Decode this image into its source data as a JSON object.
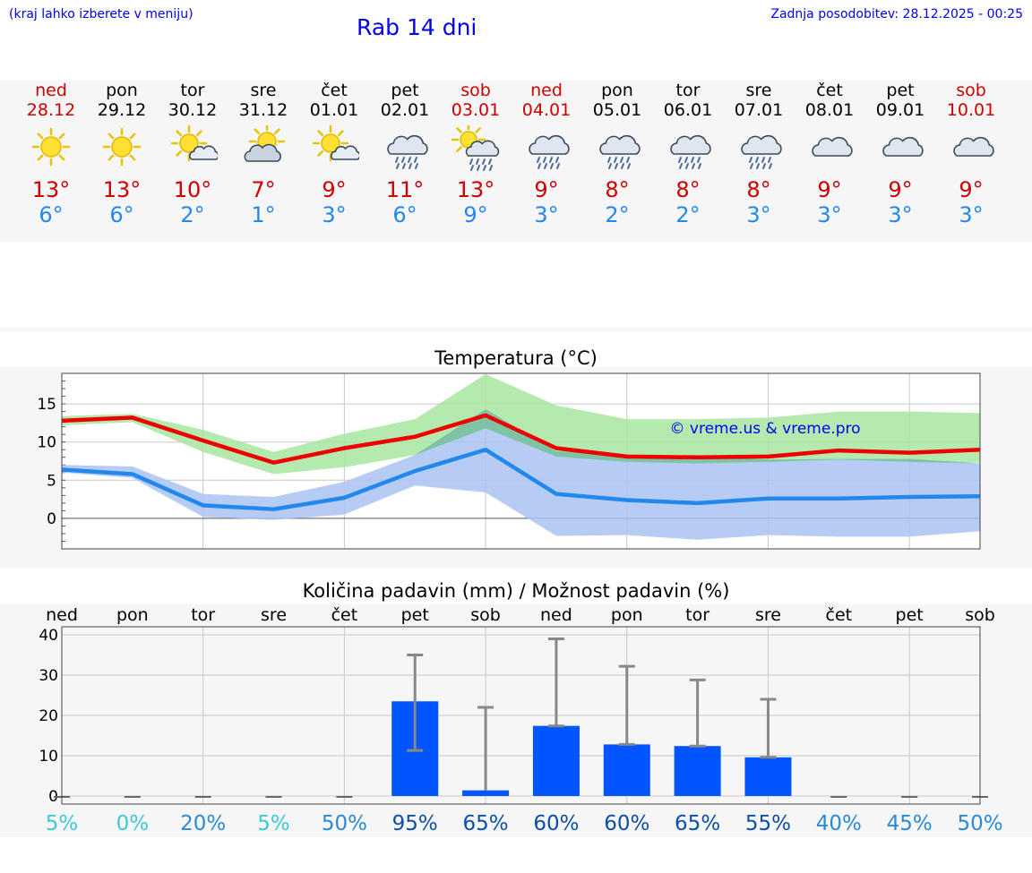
{
  "header": {
    "note": "(kraj lahko izberete v meniju)",
    "title": "Rab 14 dni",
    "updated": "Zadnja posodobitev: 28.12.2025 - 00:25"
  },
  "days": [
    {
      "name": "ned",
      "date": "28.12",
      "icon": "sun-icon",
      "max": "13°",
      "min": "6°",
      "weekend": true
    },
    {
      "name": "pon",
      "date": "29.12",
      "icon": "sun-icon",
      "max": "13°",
      "min": "6°",
      "weekend": false
    },
    {
      "name": "tor",
      "date": "30.12",
      "icon": "sun-small-cloud-icon",
      "max": "10°",
      "min": "2°",
      "weekend": false
    },
    {
      "name": "sre",
      "date": "31.12",
      "icon": "sun-behind-cloud-icon",
      "max": "7°",
      "min": "1°",
      "weekend": false
    },
    {
      "name": "čet",
      "date": "01.01",
      "icon": "sun-small-cloud-icon",
      "max": "9°",
      "min": "3°",
      "weekend": false
    },
    {
      "name": "pet",
      "date": "02.01",
      "icon": "rain-cloud-icon",
      "max": "11°",
      "min": "6°",
      "weekend": false
    },
    {
      "name": "sob",
      "date": "03.01",
      "icon": "sun-rain-icon",
      "max": "13°",
      "min": "9°",
      "weekend": true
    },
    {
      "name": "ned",
      "date": "04.01",
      "icon": "rain-cloud-icon",
      "max": "9°",
      "min": "3°",
      "weekend": true
    },
    {
      "name": "pon",
      "date": "05.01",
      "icon": "rain-cloud-icon",
      "max": "8°",
      "min": "2°",
      "weekend": false
    },
    {
      "name": "tor",
      "date": "06.01",
      "icon": "rain-cloud-icon",
      "max": "8°",
      "min": "2°",
      "weekend": false
    },
    {
      "name": "sre",
      "date": "07.01",
      "icon": "rain-cloud-icon",
      "max": "8°",
      "min": "3°",
      "weekend": false
    },
    {
      "name": "čet",
      "date": "08.01",
      "icon": "cloud-icon",
      "max": "9°",
      "min": "3°",
      "weekend": false
    },
    {
      "name": "pet",
      "date": "09.01",
      "icon": "cloud-icon",
      "max": "9°",
      "min": "3°",
      "weekend": false
    },
    {
      "name": "sob",
      "date": "10.01",
      "icon": "cloud-icon",
      "max": "9°",
      "min": "3°",
      "weekend": true
    }
  ],
  "colors": {
    "weekend": "#cc0000",
    "weekday": "#000000",
    "max_line": "#ee0000",
    "min_line": "#2288ee",
    "max_band": "#a8e6a0",
    "min_band": "#a9c3f2",
    "bar": "#0055ff",
    "error_bar": "#888888"
  },
  "chart_data": [
    {
      "type": "line",
      "title": "Temperatura (°C)",
      "watermark": "© vreme.us & vreme.pro",
      "ylim": [
        -4,
        19
      ],
      "yticks": [
        0,
        5,
        10,
        15
      ],
      "grid": true,
      "x": [
        0,
        1,
        2,
        3,
        4,
        5,
        6,
        7,
        8,
        9,
        10,
        11,
        12,
        13
      ],
      "series": [
        {
          "name": "max",
          "values": [
            12.8,
            13.2,
            10.2,
            7.3,
            9.2,
            10.7,
            13.5,
            9.2,
            8.1,
            8.0,
            8.1,
            8.9,
            8.6,
            9.0
          ],
          "band_low": [
            12.2,
            12.6,
            8.7,
            5.8,
            6.7,
            8.3,
            11.8,
            8.1,
            7.4,
            7.2,
            7.4,
            7.7,
            7.4,
            7.3
          ],
          "band_high": [
            13.4,
            13.7,
            11.6,
            8.7,
            11.1,
            13.0,
            18.9,
            14.8,
            13.0,
            13.0,
            13.2,
            14.0,
            14.0,
            13.8
          ]
        },
        {
          "name": "min",
          "values": [
            6.4,
            5.8,
            1.7,
            1.2,
            2.7,
            6.2,
            9.0,
            3.2,
            2.4,
            2.0,
            2.6,
            2.6,
            2.8,
            2.9
          ],
          "band_low": [
            6.0,
            5.3,
            0.2,
            -0.2,
            0.5,
            4.3,
            3.4,
            -2.3,
            -2.2,
            -2.8,
            -2.2,
            -2.4,
            -2.4,
            -1.7
          ],
          "band_high": [
            7.0,
            6.8,
            3.2,
            2.8,
            4.8,
            8.3,
            14.3,
            8.8,
            8.3,
            8.2,
            7.7,
            7.8,
            7.8,
            7.2
          ]
        }
      ]
    },
    {
      "type": "bar",
      "title": "Količina padavin (mm) / Možnost padavin (%)",
      "ylim": [
        -2,
        42
      ],
      "yticks": [
        0,
        10,
        20,
        30,
        40
      ],
      "categories": [
        "ned",
        "pon",
        "tor",
        "sre",
        "čet",
        "pet",
        "sob",
        "ned",
        "pon",
        "tor",
        "sre",
        "čet",
        "pet",
        "sob"
      ],
      "values": [
        0,
        0,
        0,
        0,
        0,
        23.5,
        1.4,
        17.4,
        12.8,
        12.4,
        9.6,
        0,
        0,
        0
      ],
      "error_low": [
        0,
        0,
        0,
        0,
        0,
        11.3,
        1.4,
        17.4,
        12.8,
        12.4,
        9.6,
        0,
        0,
        0
      ],
      "error_high": [
        0,
        0,
        0,
        0,
        0,
        35.0,
        22.0,
        39.0,
        32.2,
        28.8,
        24.0,
        0,
        0,
        0
      ],
      "probability": [
        "5%",
        "0%",
        "20%",
        "5%",
        "50%",
        "95%",
        "65%",
        "60%",
        "60%",
        "65%",
        "55%",
        "40%",
        "45%",
        "50%"
      ],
      "probability_values": [
        5,
        0,
        20,
        5,
        50,
        95,
        65,
        60,
        60,
        65,
        55,
        40,
        45,
        50
      ]
    }
  ]
}
